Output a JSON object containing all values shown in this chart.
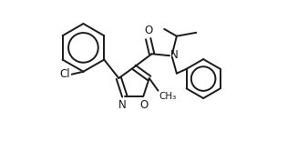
{
  "background_color": "#ffffff",
  "line_color": "#1a1a1a",
  "line_width": 1.4,
  "font_size": 8.5,
  "figsize": [
    3.38,
    1.77
  ],
  "dpi": 100,
  "xlim": [
    -1.6,
    1.55
  ],
  "ylim": [
    -0.75,
    1.05
  ]
}
